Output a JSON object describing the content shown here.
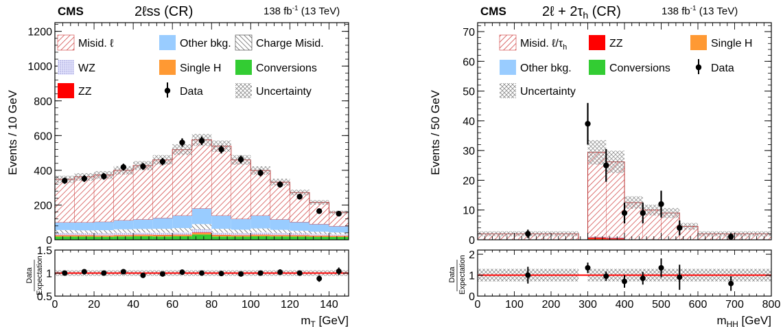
{
  "chart_data": [
    {
      "type": "bar",
      "stacked": true,
      "experiment": "CMS",
      "title": "2ℓss (CR)",
      "lumi": "138 fb-1 (13 TeV)",
      "xlabel": "mT [GeV]",
      "ylabel": "Events / 10 GeV",
      "xlim": [
        0,
        150
      ],
      "ylim": [
        0,
        1250
      ],
      "xticks": [
        0,
        20,
        40,
        60,
        80,
        100,
        120,
        140
      ],
      "yticks": [
        0,
        200,
        400,
        600,
        800,
        1000,
        1200
      ],
      "bin_edges": [
        0,
        10,
        20,
        30,
        40,
        50,
        60,
        70,
        80,
        90,
        100,
        110,
        120,
        130,
        140,
        150
      ],
      "series": [
        {
          "name": "Conversions",
          "color": "#33cc33",
          "values": [
            18,
            18,
            17,
            19,
            20,
            19,
            20,
            30,
            19,
            18,
            20,
            19,
            18,
            17,
            16
          ]
        },
        {
          "name": "Single H",
          "color": "#ff9933",
          "values": [
            6,
            6,
            6,
            6,
            7,
            7,
            7,
            9,
            7,
            6,
            7,
            6,
            6,
            5,
            5
          ]
        },
        {
          "name": "ZZ",
          "color": "#ff0000",
          "values": [
            2,
            2,
            2,
            2,
            2,
            2,
            2,
            3,
            2,
            2,
            2,
            2,
            2,
            2,
            2
          ]
        },
        {
          "name": "WZ",
          "color": "#9999dd",
          "values": [
            12,
            11,
            12,
            13,
            13,
            13,
            14,
            18,
            13,
            12,
            14,
            12,
            11,
            10,
            9
          ]
        },
        {
          "name": "Charge Misid.",
          "color": "#333333",
          "values": [
            18,
            17,
            18,
            20,
            20,
            22,
            24,
            30,
            22,
            20,
            22,
            18,
            15,
            12,
            10
          ]
        },
        {
          "name": "Other bkg.",
          "color": "#99ccff",
          "values": [
            44,
            46,
            48,
            52,
            55,
            62,
            72,
            90,
            76,
            62,
            74,
            60,
            50,
            44,
            36
          ]
        },
        {
          "name": "Misid. ℓ",
          "color": "#cc3333",
          "values": [
            248,
            262,
            270,
            288,
            310,
            335,
            380,
            395,
            400,
            340,
            260,
            215,
            170,
            125,
            80
          ]
        }
      ],
      "data": {
        "name": "Data",
        "x": [
          5,
          15,
          25,
          35,
          45,
          55,
          65,
          75,
          85,
          95,
          105,
          115,
          125,
          135,
          145
        ],
        "y": [
          340,
          352,
          365,
          418,
          422,
          450,
          560,
          570,
          520,
          462,
          385,
          318,
          248,
          165,
          150
        ],
        "err": [
          18,
          19,
          19,
          20,
          20,
          21,
          24,
          24,
          23,
          22,
          20,
          18,
          16,
          13,
          12
        ]
      },
      "uncertainty": {
        "name": "Uncertainty",
        "relative": 0.06
      },
      "legend": [
        "Misid. ℓ",
        "Other bkg.",
        "Charge Misid.",
        "WZ",
        "Single H",
        "Conversions",
        "ZZ",
        "Data",
        "Uncertainty"
      ],
      "ratio": {
        "ylabel_top": "Data",
        "ylabel_bottom": "Expectation",
        "ylim": [
          0.5,
          1.5
        ],
        "yticks": [
          "0.5",
          "1",
          "1.5"
        ],
        "y": [
          1.0,
          1.03,
          1.0,
          1.03,
          0.95,
          0.98,
          1.02,
          1.0,
          0.99,
          0.98,
          1.0,
          1.02,
          1.0,
          0.88,
          1.04
        ],
        "err": [
          0.05,
          0.05,
          0.05,
          0.05,
          0.05,
          0.05,
          0.04,
          0.04,
          0.04,
          0.05,
          0.05,
          0.06,
          0.06,
          0.07,
          0.08
        ]
      }
    },
    {
      "type": "bar",
      "stacked": true,
      "experiment": "CMS",
      "title": "2ℓ + 2τh (CR)",
      "lumi": "138 fb-1 (13 TeV)",
      "xlabel": "mHH [GeV]",
      "ylabel": "Events / 50 GeV",
      "xlim": [
        0,
        800
      ],
      "ylim": [
        0,
        73
      ],
      "xticks": [
        0,
        100,
        200,
        300,
        400,
        500,
        600,
        700,
        800
      ],
      "yticks": [
        0,
        10,
        20,
        30,
        40,
        50,
        60,
        70
      ],
      "bin_edges": [
        0,
        275,
        300,
        350,
        400,
        450,
        500,
        550,
        600,
        800
      ],
      "series": [
        {
          "name": "Conversions",
          "color": "#33cc33",
          "values": [
            0,
            0,
            0,
            0,
            0,
            0,
            0,
            0,
            0
          ]
        },
        {
          "name": "Single H",
          "color": "#ff9933",
          "values": [
            0,
            0,
            0.3,
            0.2,
            0,
            0,
            0,
            0,
            0
          ]
        },
        {
          "name": "ZZ",
          "color": "#ff0000",
          "values": [
            0,
            0,
            0.4,
            0.3,
            0,
            0,
            0,
            0,
            0
          ]
        },
        {
          "name": "Other bkg.",
          "color": "#99ccff",
          "values": [
            0,
            0,
            0.2,
            0.2,
            0,
            0,
            0,
            0,
            0
          ]
        },
        {
          "name": "Misid. ℓ/τh",
          "color": "#cc3333",
          "values": [
            2,
            0,
            28.5,
            25.5,
            12.5,
            10,
            9,
            4.5,
            2
          ]
        }
      ],
      "data": {
        "name": "Data",
        "x": [
          137,
          300,
          350,
          400,
          450,
          500,
          550,
          690
        ],
        "y": [
          2,
          39,
          25,
          9,
          9,
          12,
          4,
          1
        ],
        "err": [
          1.4,
          7,
          5.5,
          3.5,
          3.5,
          4.5,
          2.5,
          1.2
        ]
      },
      "uncertainty": {
        "name": "Uncertainty",
        "relative": 0.12
      },
      "legend": [
        "Misid. ℓ/τh",
        "ZZ",
        "Single H",
        "Other bkg.",
        "Conversions",
        "Data",
        "Uncertainty"
      ],
      "ratio": {
        "ylabel_top": "Data",
        "ylabel_bottom": "Expectation",
        "ylim": [
          0,
          2.2
        ],
        "yticks": [
          "0",
          "1",
          "2"
        ],
        "x": [
          137,
          300,
          350,
          400,
          450,
          500,
          550,
          690
        ],
        "y": [
          1.0,
          1.35,
          0.95,
          0.7,
          0.85,
          1.35,
          0.9,
          0.6
        ],
        "err": [
          0.4,
          0.25,
          0.22,
          0.3,
          0.3,
          0.45,
          0.6,
          0.35
        ]
      }
    }
  ]
}
